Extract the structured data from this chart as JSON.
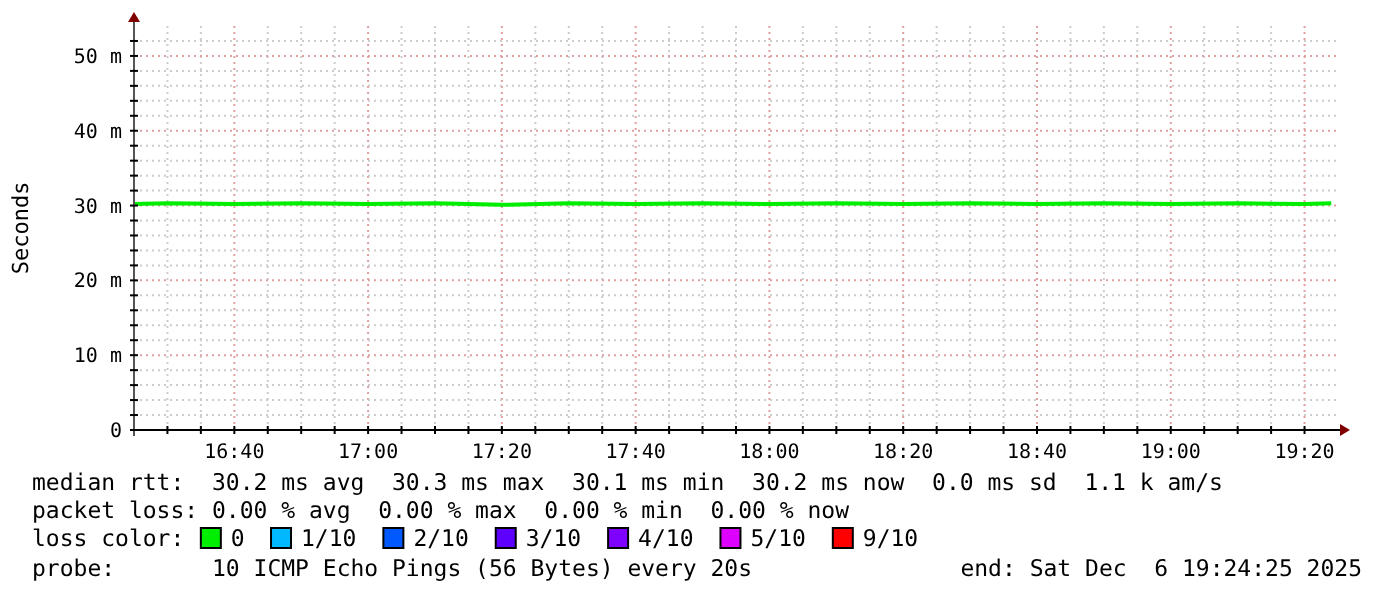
{
  "chart_data": {
    "type": "line",
    "ylabel": "Seconds",
    "legend_title": "loss color:",
    "legend": "bottom",
    "grid": true,
    "marker": "none",
    "line_style": "solid",
    "xlim": [
      16.4167,
      19.4167
    ],
    "ylim": [
      0,
      54
    ],
    "xticks": [
      {
        "value": 16.5,
        "label": null
      },
      {
        "value": 16.5833,
        "label": null
      },
      {
        "value": 16.6667,
        "label": "16:40"
      },
      {
        "value": 16.75,
        "label": null
      },
      {
        "value": 16.8333,
        "label": null
      },
      {
        "value": 16.9167,
        "label": null
      },
      {
        "value": 17,
        "label": "17:00"
      },
      {
        "value": 17.0833,
        "label": null
      },
      {
        "value": 17.1667,
        "label": null
      },
      {
        "value": 17.25,
        "label": null
      },
      {
        "value": 17.3333,
        "label": "17:20"
      },
      {
        "value": 17.4167,
        "label": null
      },
      {
        "value": 17.5,
        "label": null
      },
      {
        "value": 17.5833,
        "label": null
      },
      {
        "value": 17.6667,
        "label": "17:40"
      },
      {
        "value": 17.75,
        "label": null
      },
      {
        "value": 17.8333,
        "label": null
      },
      {
        "value": 17.9167,
        "label": null
      },
      {
        "value": 18,
        "label": "18:00"
      },
      {
        "value": 18.0833,
        "label": null
      },
      {
        "value": 18.1667,
        "label": null
      },
      {
        "value": 18.25,
        "label": null
      },
      {
        "value": 18.3333,
        "label": "18:20"
      },
      {
        "value": 18.4167,
        "label": null
      },
      {
        "value": 18.5,
        "label": null
      },
      {
        "value": 18.5833,
        "label": null
      },
      {
        "value": 18.6667,
        "label": "18:40"
      },
      {
        "value": 18.75,
        "label": null
      },
      {
        "value": 18.8333,
        "label": null
      },
      {
        "value": 18.9167,
        "label": null
      },
      {
        "value": 19,
        "label": "19:00"
      },
      {
        "value": 19.0833,
        "label": null
      },
      {
        "value": 19.1667,
        "label": null
      },
      {
        "value": 19.25,
        "label": null
      },
      {
        "value": 19.3333,
        "label": "19:20"
      }
    ],
    "yticks": [
      0,
      {
        "value": 2,
        "label": null
      },
      {
        "value": 4,
        "label": null
      },
      {
        "value": 6,
        "label": null
      },
      {
        "value": 8,
        "label": null
      },
      {
        "value": 10,
        "label": "10 m"
      },
      {
        "value": 12,
        "label": null
      },
      {
        "value": 14,
        "label": null
      },
      {
        "value": 16,
        "label": null
      },
      {
        "value": 18,
        "label": null
      },
      {
        "value": 20,
        "label": "20 m"
      },
      {
        "value": 22,
        "label": null
      },
      {
        "value": 24,
        "label": null
      },
      {
        "value": 26,
        "label": null
      },
      {
        "value": 28,
        "label": null
      },
      {
        "value": 30,
        "label": "30 m"
      },
      {
        "value": 32,
        "label": null
      },
      {
        "value": 34,
        "label": null
      },
      {
        "value": 36,
        "label": null
      },
      {
        "value": 38,
        "label": null
      },
      {
        "value": 40,
        "label": "40 m"
      },
      {
        "value": 42,
        "label": null
      },
      {
        "value": 44,
        "label": null
      },
      {
        "value": 46,
        "label": null
      },
      {
        "value": 48,
        "label": null
      },
      {
        "value": 50,
        "label": "50 m"
      },
      {
        "value": 52,
        "label": null
      }
    ],
    "x": [
      16.4167,
      16.5,
      16.6667,
      16.8333,
      17,
      17.1667,
      17.3333,
      17.5,
      17.6667,
      17.8333,
      18,
      18.1667,
      18.3333,
      18.5,
      18.6667,
      18.8333,
      19,
      19.1667,
      19.3333,
      19.4
    ],
    "series": [
      {
        "name": "0",
        "color": "#00ee00",
        "values": [
          30.2,
          30.3,
          30.2,
          30.3,
          30.2,
          30.3,
          30.1,
          30.3,
          30.2,
          30.3,
          30.2,
          30.3,
          30.2,
          30.3,
          30.2,
          30.3,
          30.2,
          30.3,
          30.2,
          30.3
        ]
      },
      {
        "name": "1/10",
        "color": "#00b8ff",
        "values": [
          null,
          null,
          null,
          null,
          null,
          null,
          null,
          null,
          null,
          null,
          null,
          null,
          null,
          null,
          null,
          null,
          null,
          null,
          null,
          null
        ]
      },
      {
        "name": "2/10",
        "color": "#0059ff",
        "values": [
          null,
          null,
          null,
          null,
          null,
          null,
          null,
          null,
          null,
          null,
          null,
          null,
          null,
          null,
          null,
          null,
          null,
          null,
          null,
          null
        ]
      },
      {
        "name": "3/10",
        "color": "#5e00ff",
        "values": [
          null,
          null,
          null,
          null,
          null,
          null,
          null,
          null,
          null,
          null,
          null,
          null,
          null,
          null,
          null,
          null,
          null,
          null,
          null,
          null
        ]
      },
      {
        "name": "4/10",
        "color": "#7e00ff",
        "values": [
          null,
          null,
          null,
          null,
          null,
          null,
          null,
          null,
          null,
          null,
          null,
          null,
          null,
          null,
          null,
          null,
          null,
          null,
          null,
          null
        ]
      },
      {
        "name": "5/10",
        "color": "#dd00ff",
        "values": [
          null,
          null,
          null,
          null,
          null,
          null,
          null,
          null,
          null,
          null,
          null,
          null,
          null,
          null,
          null,
          null,
          null,
          null,
          null,
          null
        ]
      },
      {
        "name": "9/10",
        "color": "#ff0000",
        "values": [
          null,
          null,
          null,
          null,
          null,
          null,
          null,
          null,
          null,
          null,
          null,
          null,
          null,
          null,
          null,
          null,
          null,
          null,
          null,
          null
        ]
      }
    ],
    "annotations": [
      "median rtt:  30.2 ms avg  30.3 ms max  30.1 ms min  30.2 ms now  0.0 ms sd  1.1 k am/s",
      "packet loss: 0.00 % avg  0.00 % max  0.00 % min  0.00 % now",
      "probe:       10 ICMP Echo Pings (56 Bytes) every 20s",
      "end: Sat Dec  6 19:24:25 2025"
    ]
  }
}
